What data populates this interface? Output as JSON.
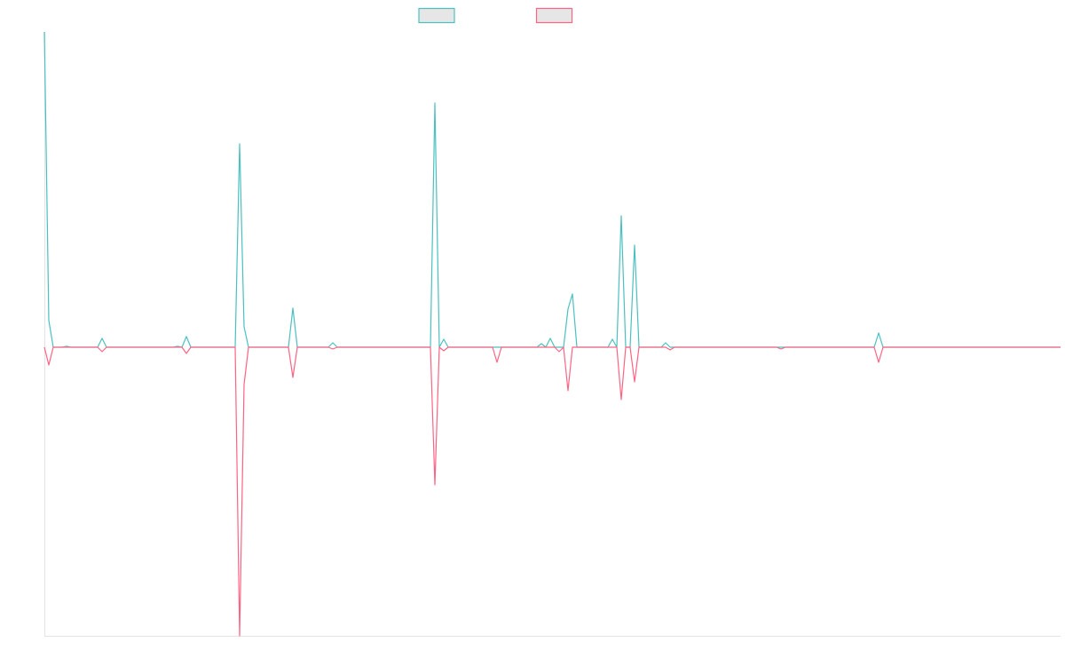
{
  "chart_data": {
    "type": "line",
    "ylim": [
      -325,
      355
    ],
    "series": [
      {
        "color": "#4bc0c0",
        "values": [
          355,
          30,
          0,
          0,
          0,
          1,
          0,
          0,
          0,
          0,
          0,
          0,
          0,
          10,
          0,
          0,
          0,
          0,
          0,
          0,
          0,
          0,
          0,
          0,
          0,
          0,
          0,
          0,
          0,
          0,
          1,
          0,
          12,
          0,
          0,
          0,
          0,
          0,
          0,
          0,
          0,
          0,
          0,
          0,
          229,
          23,
          0,
          0,
          0,
          0,
          0,
          0,
          0,
          0,
          0,
          0,
          44,
          0,
          0,
          0,
          0,
          0,
          0,
          0,
          0,
          5,
          0,
          0,
          0,
          0,
          0,
          0,
          0,
          0,
          0,
          0,
          0,
          0,
          0,
          0,
          0,
          0,
          0,
          0,
          0,
          0,
          0,
          0,
          275,
          0,
          9,
          0,
          0,
          0,
          0,
          0,
          0,
          0,
          0,
          0,
          0,
          0,
          0,
          0,
          0,
          0,
          0,
          0,
          0,
          0,
          0,
          0,
          4,
          0,
          10,
          0,
          0,
          0,
          43,
          60,
          0,
          0,
          0,
          0,
          0,
          0,
          0,
          0,
          9,
          0,
          148,
          0,
          0,
          115,
          0,
          0,
          0,
          0,
          0,
          0,
          5,
          0,
          0,
          0,
          0,
          0,
          0,
          0,
          0,
          0,
          0,
          0,
          0,
          0,
          0,
          0,
          0,
          0,
          0,
          0,
          0,
          0,
          0,
          0,
          0,
          0,
          0,
          0,
          0,
          0,
          0,
          0,
          0,
          0,
          0,
          0,
          0,
          0,
          0,
          0,
          0,
          0,
          0,
          0,
          0,
          0,
          0,
          0,
          16,
          0,
          0,
          0,
          0,
          0,
          0,
          0,
          0,
          0,
          0,
          0,
          0,
          0,
          0,
          0,
          0,
          0,
          0,
          0,
          0,
          0,
          0,
          0,
          0,
          0,
          0,
          0,
          0,
          0,
          0,
          0,
          0,
          0,
          0,
          0,
          0,
          0,
          0,
          0,
          0,
          0
        ]
      },
      {
        "color": "#ff6384",
        "values": [
          0,
          -20,
          0,
          0,
          0,
          0,
          0,
          0,
          0,
          0,
          0,
          0,
          0,
          -5,
          0,
          0,
          0,
          0,
          0,
          0,
          0,
          0,
          0,
          0,
          0,
          0,
          0,
          0,
          0,
          0,
          0,
          0,
          -7,
          0,
          0,
          0,
          0,
          0,
          0,
          0,
          0,
          0,
          0,
          0,
          -325,
          -42,
          0,
          0,
          0,
          0,
          0,
          0,
          0,
          0,
          0,
          0,
          -34,
          0,
          0,
          0,
          0,
          0,
          0,
          0,
          0,
          -2,
          0,
          0,
          0,
          0,
          0,
          0,
          0,
          0,
          0,
          0,
          0,
          0,
          0,
          0,
          0,
          0,
          0,
          0,
          0,
          0,
          0,
          0,
          -155,
          0,
          -4,
          0,
          0,
          0,
          0,
          0,
          0,
          0,
          0,
          0,
          0,
          0,
          -17,
          0,
          0,
          0,
          0,
          0,
          0,
          0,
          0,
          0,
          0,
          0,
          0,
          0,
          -5,
          0,
          -49,
          0,
          0,
          0,
          0,
          0,
          0,
          0,
          0,
          0,
          0,
          0,
          -59,
          0,
          0,
          -39,
          0,
          0,
          0,
          0,
          0,
          0,
          0,
          -3,
          0,
          0,
          0,
          0,
          0,
          0,
          0,
          0,
          0,
          0,
          0,
          0,
          0,
          0,
          0,
          0,
          0,
          0,
          0,
          0,
          0,
          0,
          0,
          0,
          -2,
          0,
          0,
          0,
          0,
          0,
          0,
          0,
          0,
          0,
          0,
          0,
          0,
          0,
          0,
          0,
          0,
          0,
          0,
          0,
          0,
          0,
          -17,
          0,
          0,
          0,
          0,
          0,
          0,
          0,
          0,
          0,
          0,
          0,
          0,
          0,
          0,
          0,
          0,
          0,
          0,
          0,
          0,
          0,
          0,
          0,
          0,
          0,
          0,
          0,
          0,
          0,
          0,
          0,
          0,
          0,
          0,
          0,
          0,
          0,
          0,
          0,
          0,
          0
        ]
      }
    ]
  }
}
